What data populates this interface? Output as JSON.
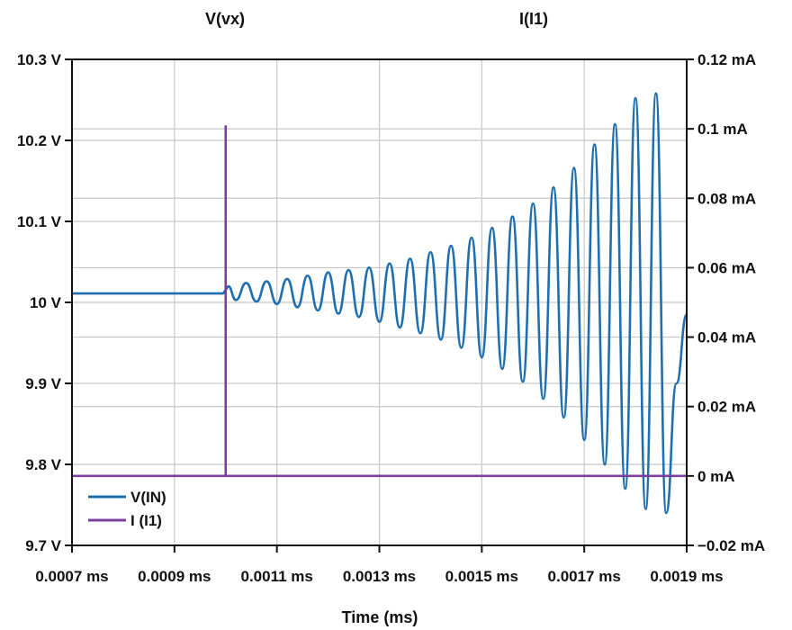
{
  "chart_data": {
    "type": "line",
    "title": "",
    "xlabel": "Time (ms)",
    "y_left_header": "V(vx)",
    "y_right_header": "I(I1)",
    "xlim": [
      0.0007,
      0.0019
    ],
    "ylim_left": [
      9.7,
      10.3
    ],
    "ylim_right": [
      -0.02,
      0.12
    ],
    "x_ticks": [
      {
        "value": 0.0007,
        "label": "0.0007 ms"
      },
      {
        "value": 0.0009,
        "label": "0.0009 ms"
      },
      {
        "value": 0.0011,
        "label": "0.0011 ms"
      },
      {
        "value": 0.0013,
        "label": "0.0013 ms"
      },
      {
        "value": 0.0015,
        "label": "0.0015 ms"
      },
      {
        "value": 0.0017,
        "label": "0.0017 ms"
      },
      {
        "value": 0.0019,
        "label": "0.0019 ms"
      }
    ],
    "y_left_ticks": [
      {
        "value": 9.7,
        "label": "9.7 V"
      },
      {
        "value": 9.8,
        "label": "9.8 V"
      },
      {
        "value": 9.9,
        "label": "9.9 V"
      },
      {
        "value": 10.0,
        "label": "10 V"
      },
      {
        "value": 10.1,
        "label": "10.1 V"
      },
      {
        "value": 10.2,
        "label": "10.2 V"
      },
      {
        "value": 10.3,
        "label": "10.3 V"
      }
    ],
    "y_right_ticks": [
      {
        "value": -0.02,
        "label": "−0.02 mA"
      },
      {
        "value": 0.0,
        "label": "0 mA"
      },
      {
        "value": 0.02,
        "label": "0.02 mA"
      },
      {
        "value": 0.04,
        "label": "0.04 mA"
      },
      {
        "value": 0.06,
        "label": "0.06 mA"
      },
      {
        "value": 0.08,
        "label": "0.08 mA"
      },
      {
        "value": 0.1,
        "label": "0.1 mA"
      },
      {
        "value": 0.12,
        "label": "0.12 mA"
      }
    ],
    "grid": true,
    "legend_position": "bottom-left",
    "series": [
      {
        "name": "V(IN)",
        "color": "#1f6fb0",
        "axis": "left",
        "x": [
          0.0007,
          0.000995,
          0.000995,
          0.001005,
          0.00102,
          0.00104,
          0.00106,
          0.00108,
          0.0011,
          0.00112,
          0.00114,
          0.00116,
          0.00118,
          0.0012,
          0.00122,
          0.00124,
          0.00126,
          0.00128,
          0.0013,
          0.00132,
          0.00134,
          0.00136,
          0.00138,
          0.0014,
          0.00142,
          0.00144,
          0.00146,
          0.00148,
          0.0015,
          0.00152,
          0.00154,
          0.00156,
          0.00158,
          0.0016,
          0.00162,
          0.00164,
          0.00166,
          0.00168,
          0.0017,
          0.00172,
          0.00174,
          0.00176,
          0.00178,
          0.0018,
          0.00182,
          0.00184,
          0.00186,
          0.00188,
          0.0019
        ],
        "values": [
          10.011,
          10.011,
          10.011,
          10.02,
          10.003,
          10.024,
          10.001,
          10.026,
          9.998,
          10.029,
          9.994,
          10.033,
          9.99,
          10.037,
          9.986,
          10.04,
          9.982,
          10.043,
          9.976,
          10.048,
          9.969,
          10.054,
          9.962,
          10.062,
          9.954,
          10.07,
          9.944,
          10.08,
          9.932,
          10.092,
          9.918,
          10.106,
          9.902,
          10.122,
          9.881,
          10.142,
          9.858,
          10.166,
          9.83,
          10.195,
          9.8,
          10.22,
          9.77,
          10.252,
          9.745,
          10.258,
          9.74,
          9.9,
          9.985
        ]
      },
      {
        "name": "I (I1)",
        "color": "#7b3f9e",
        "axis": "right",
        "x": [
          0.0007,
          0.001,
          0.001,
          0.001,
          0.0019
        ],
        "values": [
          0.0,
          0.0,
          0.101,
          0.0,
          0.0
        ]
      }
    ]
  }
}
